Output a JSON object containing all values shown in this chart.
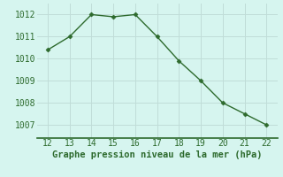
{
  "x": [
    12,
    13,
    14,
    15,
    16,
    17,
    18,
    19,
    20,
    21,
    22
  ],
  "y": [
    1010.4,
    1011.0,
    1012.0,
    1011.9,
    1012.0,
    1011.0,
    1009.9,
    1009.0,
    1008.0,
    1007.5,
    1007.0
  ],
  "line_color": "#2d6a2d",
  "marker": "D",
  "marker_size": 2.5,
  "bg_color": "#d6f5ef",
  "grid_color": "#c0ddd8",
  "xlabel": "Graphe pression niveau de la mer (hPa)",
  "xlabel_color": "#2d6a2d",
  "xlabel_fontsize": 7.5,
  "ytick_values": [
    1007,
    1008,
    1009,
    1010,
    1011,
    1012
  ],
  "ylim": [
    1006.4,
    1012.5
  ],
  "xlim": [
    11.5,
    22.5
  ],
  "tick_color": "#2d6a2d",
  "tick_fontsize": 7,
  "spine_color": "#2d6a2d",
  "linewidth": 1.0
}
